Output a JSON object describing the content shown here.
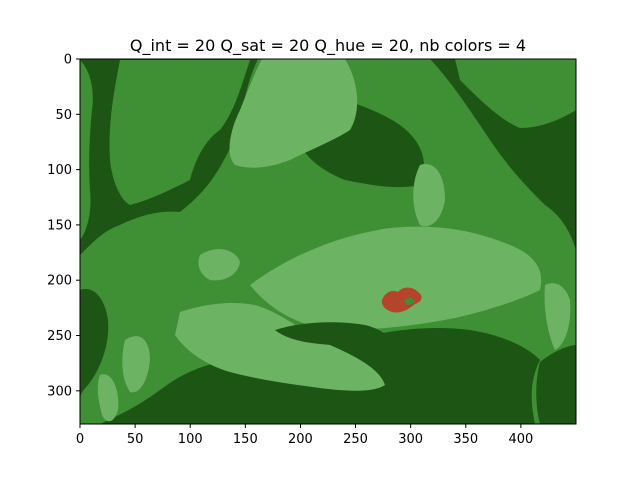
{
  "chart_data": {
    "type": "heatmap",
    "title": "Q_int = 20 Q_sat = 20 Q_hue = 20, nb colors = 4",
    "xlabel": "",
    "ylabel": "",
    "xlim": [
      0,
      450
    ],
    "ylim": [
      330,
      0
    ],
    "x_ticks": [
      0,
      50,
      100,
      150,
      200,
      250,
      300,
      350,
      400
    ],
    "y_ticks": [
      0,
      50,
      100,
      150,
      200,
      250,
      300
    ],
    "grid": false,
    "palette": [
      "#1c5514",
      "#3f8f34",
      "#6cb364",
      "#b4442a"
    ],
    "image_description_regions": [
      {
        "label": "dark green background",
        "color": "#1c5514"
      },
      {
        "label": "medium green",
        "color": "#3f8f34"
      },
      {
        "label": "light green",
        "color": "#6cb364"
      },
      {
        "label": "red-orange spot",
        "color": "#b4442a"
      }
    ]
  }
}
